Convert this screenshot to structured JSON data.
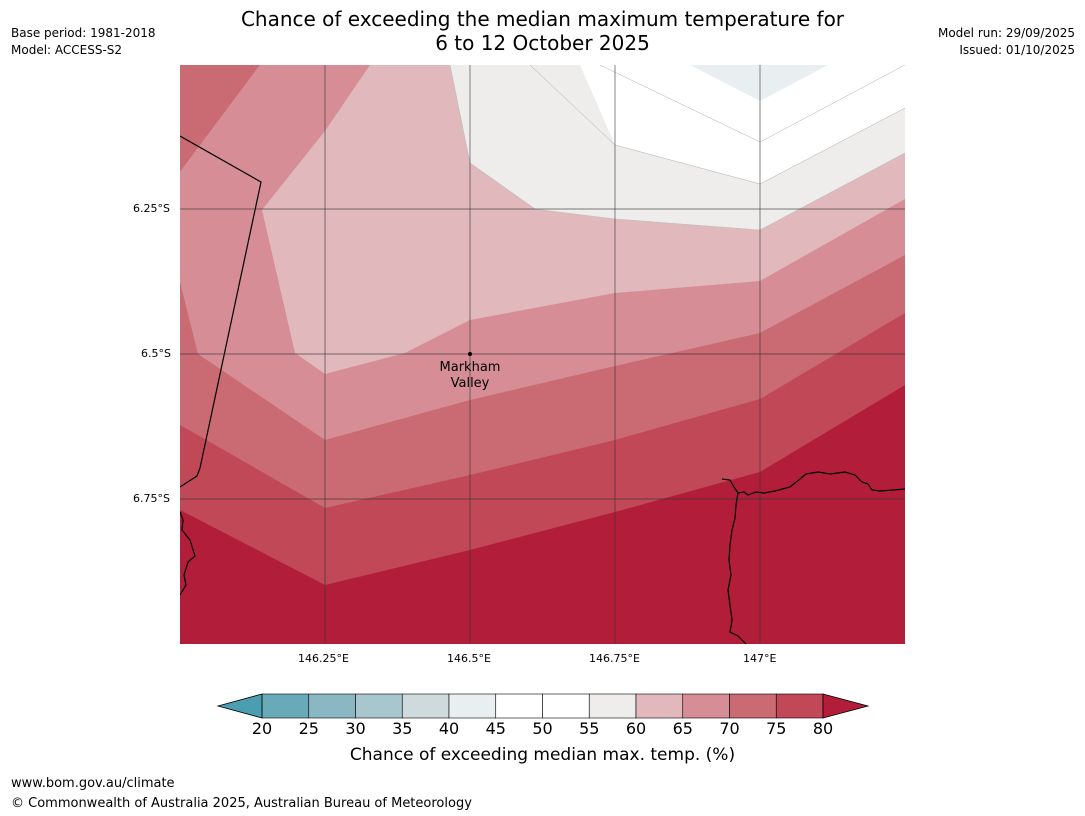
{
  "header": {
    "title_line1": "Chance of exceeding the median maximum temperature for",
    "title_line2": "6 to 12 October 2025",
    "base_period": "Base period: 1981-2018",
    "model": "Model: ACCESS-S2",
    "model_run": "Model run: 29/09/2025",
    "issued": "Issued: 01/10/2025"
  },
  "map": {
    "location_label_line1": "Markham",
    "location_label_line2": "Valley",
    "lat_labels": [
      "6.25°S",
      "6.5°S",
      "6.75°S"
    ],
    "lon_labels": [
      "146.25°E",
      "146.5°E",
      "146.75°E",
      "147°E"
    ],
    "band_colors": {
      "c45_50": "#ffffff",
      "c50_55": "#ffffff",
      "c55_60": "#eeedeb",
      "c60_65": "#e1b8bc",
      "c65_70": "#d68d95",
      "c70_75": "#ca6a73",
      "c75_80": "#c04857",
      "c80_plus": "#b21d3a",
      "c40_45": "#e9eff1"
    }
  },
  "colorbar": {
    "ticks": [
      "20",
      "25",
      "30",
      "35",
      "40",
      "45",
      "50",
      "55",
      "60",
      "65",
      "70",
      "75",
      "80"
    ],
    "colors": [
      "#69aab9",
      "#8bb7c3",
      "#a8c6cd",
      "#cfdadd",
      "#e9eff1",
      "#ffffff",
      "#ffffff",
      "#eeedeb",
      "#e1b8bc",
      "#d68d95",
      "#ca6a73",
      "#c04857"
    ],
    "under_color": "#4a9eb0",
    "over_color": "#b21d3a",
    "label": "Chance of exceeding median max. temp. (%)"
  },
  "footer": {
    "url": "www.bom.gov.au/climate",
    "copyright": "© Commonwealth of Australia 2025, Australian Bureau of Meteorology"
  }
}
